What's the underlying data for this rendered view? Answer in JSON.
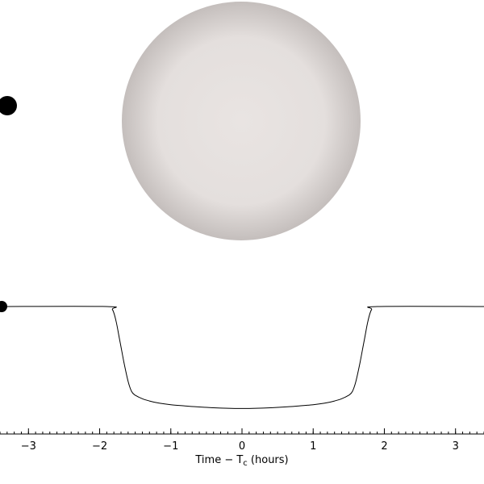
{
  "scene": {
    "star_color": "#e9e4e2",
    "star_limb_color": "#c4bebc",
    "planet_color": "#000000"
  },
  "chart_data": {
    "type": "line",
    "title": "",
    "xlabel_prefix": "Time − T",
    "xlabel_sub": "c",
    "xlabel_suffix": " (hours)",
    "ylabel": "",
    "xlim": [
      -3.4,
      3.4
    ],
    "ylim": [
      0.0,
      1.0
    ],
    "grid": false,
    "x_major_ticks": [
      -3,
      -2,
      -1,
      0,
      1,
      2,
      3
    ],
    "x_tick_labels": [
      "−3",
      "−2",
      "−1",
      "0",
      "1",
      "2",
      "3"
    ],
    "x_minor_step": 0.1,
    "current_time": -3.4,
    "series": [
      {
        "line_color": "#000000",
        "x": [
          -3.4,
          -1.9,
          -1.82,
          -1.77,
          -1.72,
          -1.66,
          -1.6,
          -1.55,
          -1.5,
          -1.4,
          -1.3,
          -1.2,
          -1.0,
          -0.8,
          -0.6,
          -0.4,
          -0.2,
          0.0,
          0.2,
          0.4,
          0.6,
          0.8,
          1.0,
          1.2,
          1.3,
          1.4,
          1.5,
          1.55,
          1.6,
          1.66,
          1.72,
          1.77,
          1.82,
          1.9,
          3.4
        ],
        "y": [
          1.0,
          1.0,
          0.97,
          0.86,
          0.68,
          0.46,
          0.27,
          0.17,
          0.135,
          0.1,
          0.078,
          0.062,
          0.042,
          0.03,
          0.02,
          0.012,
          0.007,
          0.005,
          0.007,
          0.012,
          0.02,
          0.03,
          0.042,
          0.062,
          0.078,
          0.1,
          0.135,
          0.17,
          0.27,
          0.46,
          0.68,
          0.86,
          0.97,
          1.0,
          1.0
        ]
      }
    ]
  }
}
